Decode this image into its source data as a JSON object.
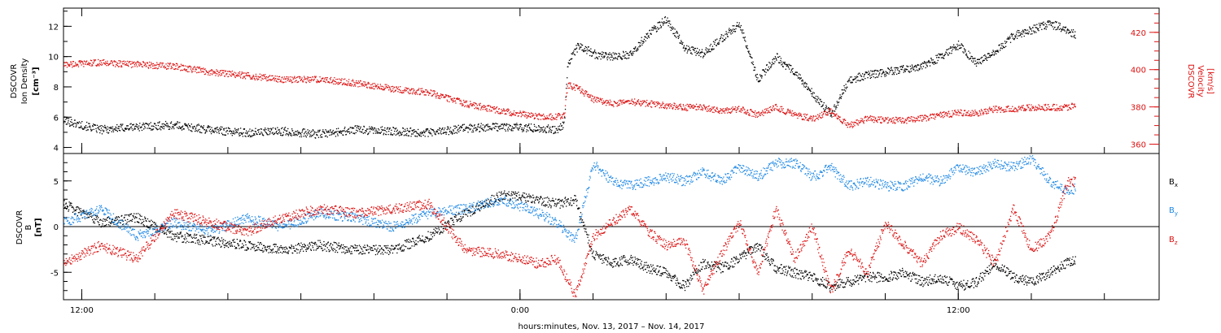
{
  "chart_data": [
    {
      "type": "scatter",
      "title": "",
      "ylabel_left": [
        "DSCOVR",
        "Ion Density",
        "[cm⁻³]"
      ],
      "ylabel_right": [
        "DSCOVR",
        "Velocity",
        "[km/s]"
      ],
      "ylim_left": [
        3.6,
        13.2
      ],
      "yticks_left": [
        "4",
        "6",
        "8",
        "10",
        "12"
      ],
      "ylim_right": [
        355,
        433
      ],
      "yticks_right": [
        "360",
        "380",
        "400",
        "420"
      ],
      "xlim_hours": [
        11.5,
        41.5
      ],
      "grid": false,
      "series": [
        {
          "name": "",
          "axis": "left",
          "color": "#000000",
          "points": [
            [
              11.5,
              5.8
            ],
            [
              12.5,
              5.2
            ],
            [
              13.5,
              5.4
            ],
            [
              14.5,
              5.5
            ],
            [
              15.5,
              5.2
            ],
            [
              16.5,
              5.0
            ],
            [
              17.5,
              5.1
            ],
            [
              18.5,
              4.9
            ],
            [
              19.5,
              5.2
            ],
            [
              20.5,
              5.1
            ],
            [
              21.5,
              5.0
            ],
            [
              22.5,
              5.3
            ],
            [
              23.5,
              5.4
            ],
            [
              24.5,
              5.3
            ],
            [
              25.0,
              5.2
            ],
            [
              25.2,
              5.6
            ],
            [
              25.3,
              9.6
            ],
            [
              25.6,
              10.8
            ],
            [
              26.0,
              10.2
            ],
            [
              26.5,
              10.0
            ],
            [
              27.0,
              10.2
            ],
            [
              27.5,
              11.5
            ],
            [
              28.0,
              12.5
            ],
            [
              28.5,
              10.6
            ],
            [
              29.0,
              10.2
            ],
            [
              29.5,
              11.2
            ],
            [
              30.0,
              12.2
            ],
            [
              30.5,
              8.5
            ],
            [
              31.0,
              10.0
            ],
            [
              31.5,
              9.0
            ],
            [
              32.0,
              7.6
            ],
            [
              32.5,
              6.2
            ],
            [
              33.0,
              8.5
            ],
            [
              33.5,
              8.8
            ],
            [
              34.0,
              9.0
            ],
            [
              34.5,
              9.2
            ],
            [
              35.0,
              9.4
            ],
            [
              35.5,
              10.0
            ],
            [
              36.0,
              10.8
            ],
            [
              36.5,
              9.6
            ],
            [
              37.0,
              10.4
            ],
            [
              37.5,
              11.4
            ],
            [
              38.0,
              11.8
            ],
            [
              38.5,
              12.2
            ],
            [
              39.0,
              11.8
            ],
            [
              39.2,
              11.4
            ]
          ]
        },
        {
          "name": "",
          "axis": "right",
          "color": "#dd1111",
          "points": [
            [
              11.5,
              403
            ],
            [
              12.5,
              404
            ],
            [
              13.5,
              403
            ],
            [
              14.5,
              402
            ],
            [
              15.5,
              399
            ],
            [
              16.5,
              397
            ],
            [
              17.5,
              395
            ],
            [
              18.5,
              395
            ],
            [
              19.5,
              393
            ],
            [
              20.5,
              390
            ],
            [
              21.5,
              388
            ],
            [
              22.5,
              382
            ],
            [
              23.5,
              378
            ],
            [
              24.5,
              375
            ],
            [
              25.0,
              375
            ],
            [
              25.2,
              376
            ],
            [
              25.3,
              392
            ],
            [
              25.6,
              390
            ],
            [
              26.0,
              384
            ],
            [
              26.5,
              382
            ],
            [
              27.0,
              383
            ],
            [
              27.5,
              382
            ],
            [
              28.0,
              381
            ],
            [
              28.5,
              380
            ],
            [
              29.0,
              380
            ],
            [
              29.5,
              378
            ],
            [
              30.0,
              379
            ],
            [
              30.5,
              376
            ],
            [
              31.0,
              380
            ],
            [
              31.5,
              376
            ],
            [
              32.0,
              374
            ],
            [
              32.5,
              378
            ],
            [
              33.0,
              370
            ],
            [
              33.5,
              374
            ],
            [
              34.0,
              373
            ],
            [
              34.5,
              373
            ],
            [
              35.0,
              374
            ],
            [
              35.5,
              376
            ],
            [
              36.0,
              377
            ],
            [
              36.5,
              377
            ],
            [
              37.0,
              379
            ],
            [
              37.5,
              379
            ],
            [
              38.0,
              380
            ],
            [
              38.5,
              380
            ],
            [
              39.0,
              380
            ],
            [
              39.2,
              381
            ]
          ]
        }
      ]
    },
    {
      "type": "scatter",
      "title": "",
      "ylabel_left": [
        "DSCOVR",
        "B",
        "[nT]"
      ],
      "ylim_left": [
        -8,
        8
      ],
      "yticks_left": [
        "-5",
        "0",
        "5"
      ],
      "xlim_hours": [
        11.5,
        41.5
      ],
      "zero_line": true,
      "grid": false,
      "series": [
        {
          "name": "Bx",
          "color": "#000000",
          "points": [
            [
              11.5,
              2.5
            ],
            [
              12.5,
              0.5
            ],
            [
              13.5,
              1.0
            ],
            [
              14.5,
              -1.0
            ],
            [
              15.5,
              -1.5
            ],
            [
              16.5,
              -2.0
            ],
            [
              17.5,
              -2.5
            ],
            [
              18.5,
              -2.0
            ],
            [
              19.5,
              -2.5
            ],
            [
              20.5,
              -2.5
            ],
            [
              21.5,
              -1.0
            ],
            [
              22.5,
              1.5
            ],
            [
              23.5,
              3.5
            ],
            [
              24.5,
              3.0
            ],
            [
              25.0,
              2.5
            ],
            [
              25.5,
              3.0
            ],
            [
              26.0,
              -3.0
            ],
            [
              26.5,
              -4.0
            ],
            [
              27.0,
              -3.5
            ],
            [
              27.5,
              -4.5
            ],
            [
              28.0,
              -5.0
            ],
            [
              28.5,
              -6.5
            ],
            [
              29.0,
              -4.0
            ],
            [
              29.5,
              -4.5
            ],
            [
              30.0,
              -3.5
            ],
            [
              30.5,
              -2.0
            ],
            [
              31.0,
              -4.5
            ],
            [
              31.5,
              -5.0
            ],
            [
              32.0,
              -5.5
            ],
            [
              32.5,
              -6.5
            ],
            [
              33.0,
              -6.0
            ],
            [
              33.5,
              -5.5
            ],
            [
              34.0,
              -5.5
            ],
            [
              34.5,
              -5.0
            ],
            [
              35.0,
              -6.0
            ],
            [
              35.5,
              -5.5
            ],
            [
              36.0,
              -6.5
            ],
            [
              36.5,
              -6.0
            ],
            [
              37.0,
              -4.0
            ],
            [
              37.5,
              -5.5
            ],
            [
              38.0,
              -6.0
            ],
            [
              38.5,
              -5.0
            ],
            [
              39.0,
              -3.8
            ],
            [
              39.2,
              -3.5
            ]
          ]
        },
        {
          "name": "By",
          "color": "#1e88e5",
          "points": [
            [
              11.5,
              0.5
            ],
            [
              12.5,
              2.0
            ],
            [
              13.5,
              -1.0
            ],
            [
              14.5,
              0.5
            ],
            [
              15.5,
              -0.5
            ],
            [
              16.5,
              1.0
            ],
            [
              17.5,
              0.0
            ],
            [
              18.5,
              1.5
            ],
            [
              19.5,
              1.0
            ],
            [
              20.5,
              0.0
            ],
            [
              21.5,
              1.5
            ],
            [
              22.5,
              2.0
            ],
            [
              23.5,
              3.0
            ],
            [
              24.5,
              1.5
            ],
            [
              25.0,
              0.5
            ],
            [
              25.5,
              -1.5
            ],
            [
              26.0,
              7.0
            ],
            [
              26.5,
              5.0
            ],
            [
              27.0,
              4.5
            ],
            [
              27.5,
              5.0
            ],
            [
              28.0,
              5.5
            ],
            [
              28.5,
              5.0
            ],
            [
              29.0,
              6.0
            ],
            [
              29.5,
              5.0
            ],
            [
              30.0,
              6.5
            ],
            [
              30.5,
              5.5
            ],
            [
              31.0,
              7.0
            ],
            [
              31.5,
              7.0
            ],
            [
              32.0,
              5.5
            ],
            [
              32.5,
              6.5
            ],
            [
              33.0,
              4.5
            ],
            [
              33.5,
              5.0
            ],
            [
              34.0,
              4.5
            ],
            [
              34.5,
              4.5
            ],
            [
              35.0,
              5.5
            ],
            [
              35.5,
              5.0
            ],
            [
              36.0,
              6.5
            ],
            [
              36.5,
              6.0
            ],
            [
              37.0,
              7.0
            ],
            [
              37.5,
              6.5
            ],
            [
              38.0,
              7.5
            ],
            [
              38.5,
              5.0
            ],
            [
              39.0,
              4.0
            ],
            [
              39.2,
              4.2
            ]
          ]
        },
        {
          "name": "Bz",
          "color": "#dd1111",
          "points": [
            [
              11.5,
              -4.0
            ],
            [
              12.5,
              -2.0
            ],
            [
              13.5,
              -3.5
            ],
            [
              14.5,
              1.5
            ],
            [
              15.5,
              0.5
            ],
            [
              16.5,
              -0.5
            ],
            [
              17.5,
              1.0
            ],
            [
              18.5,
              2.0
            ],
            [
              19.5,
              1.5
            ],
            [
              20.5,
              2.0
            ],
            [
              21.5,
              2.5
            ],
            [
              22.5,
              -2.5
            ],
            [
              23.5,
              -3.0
            ],
            [
              24.5,
              -4.0
            ],
            [
              25.0,
              -3.5
            ],
            [
              25.5,
              -7.5
            ],
            [
              26.0,
              -1.0
            ],
            [
              26.5,
              0.5
            ],
            [
              27.0,
              2.0
            ],
            [
              27.5,
              -0.5
            ],
            [
              28.0,
              -2.0
            ],
            [
              28.5,
              -1.5
            ],
            [
              29.0,
              -7.0
            ],
            [
              29.5,
              -3.0
            ],
            [
              30.0,
              0.5
            ],
            [
              30.5,
              -5.0
            ],
            [
              31.0,
              2.0
            ],
            [
              31.5,
              -3.5
            ],
            [
              32.0,
              0.0
            ],
            [
              32.5,
              -7.0
            ],
            [
              33.0,
              -2.5
            ],
            [
              33.5,
              -5.0
            ],
            [
              34.0,
              0.5
            ],
            [
              34.5,
              -2.0
            ],
            [
              35.0,
              -4.0
            ],
            [
              35.5,
              -1.0
            ],
            [
              36.0,
              0.0
            ],
            [
              36.5,
              -1.5
            ],
            [
              37.0,
              -4.0
            ],
            [
              37.5,
              2.0
            ],
            [
              38.0,
              -2.5
            ],
            [
              38.5,
              -1.0
            ],
            [
              39.0,
              5.0
            ],
            [
              39.2,
              5.0
            ]
          ]
        }
      ]
    }
  ],
  "legend_bottom": {
    "x": {
      "base": "B",
      "sub": "x",
      "color": "#000000"
    },
    "y": {
      "base": "B",
      "sub": "y",
      "color": "#1e88e5"
    },
    "z": {
      "base": "B",
      "sub": "z",
      "color": "#dd1111"
    }
  },
  "xaxis": {
    "ticks": [
      {
        "hour": 12,
        "label": "12:00"
      },
      {
        "hour": 24,
        "label": "0:00"
      },
      {
        "hour": 36,
        "label": "12:00"
      }
    ],
    "minor_step_hours": 2,
    "label": "hours:minutes, Nov. 13, 2017 – Nov. 14, 2017"
  }
}
